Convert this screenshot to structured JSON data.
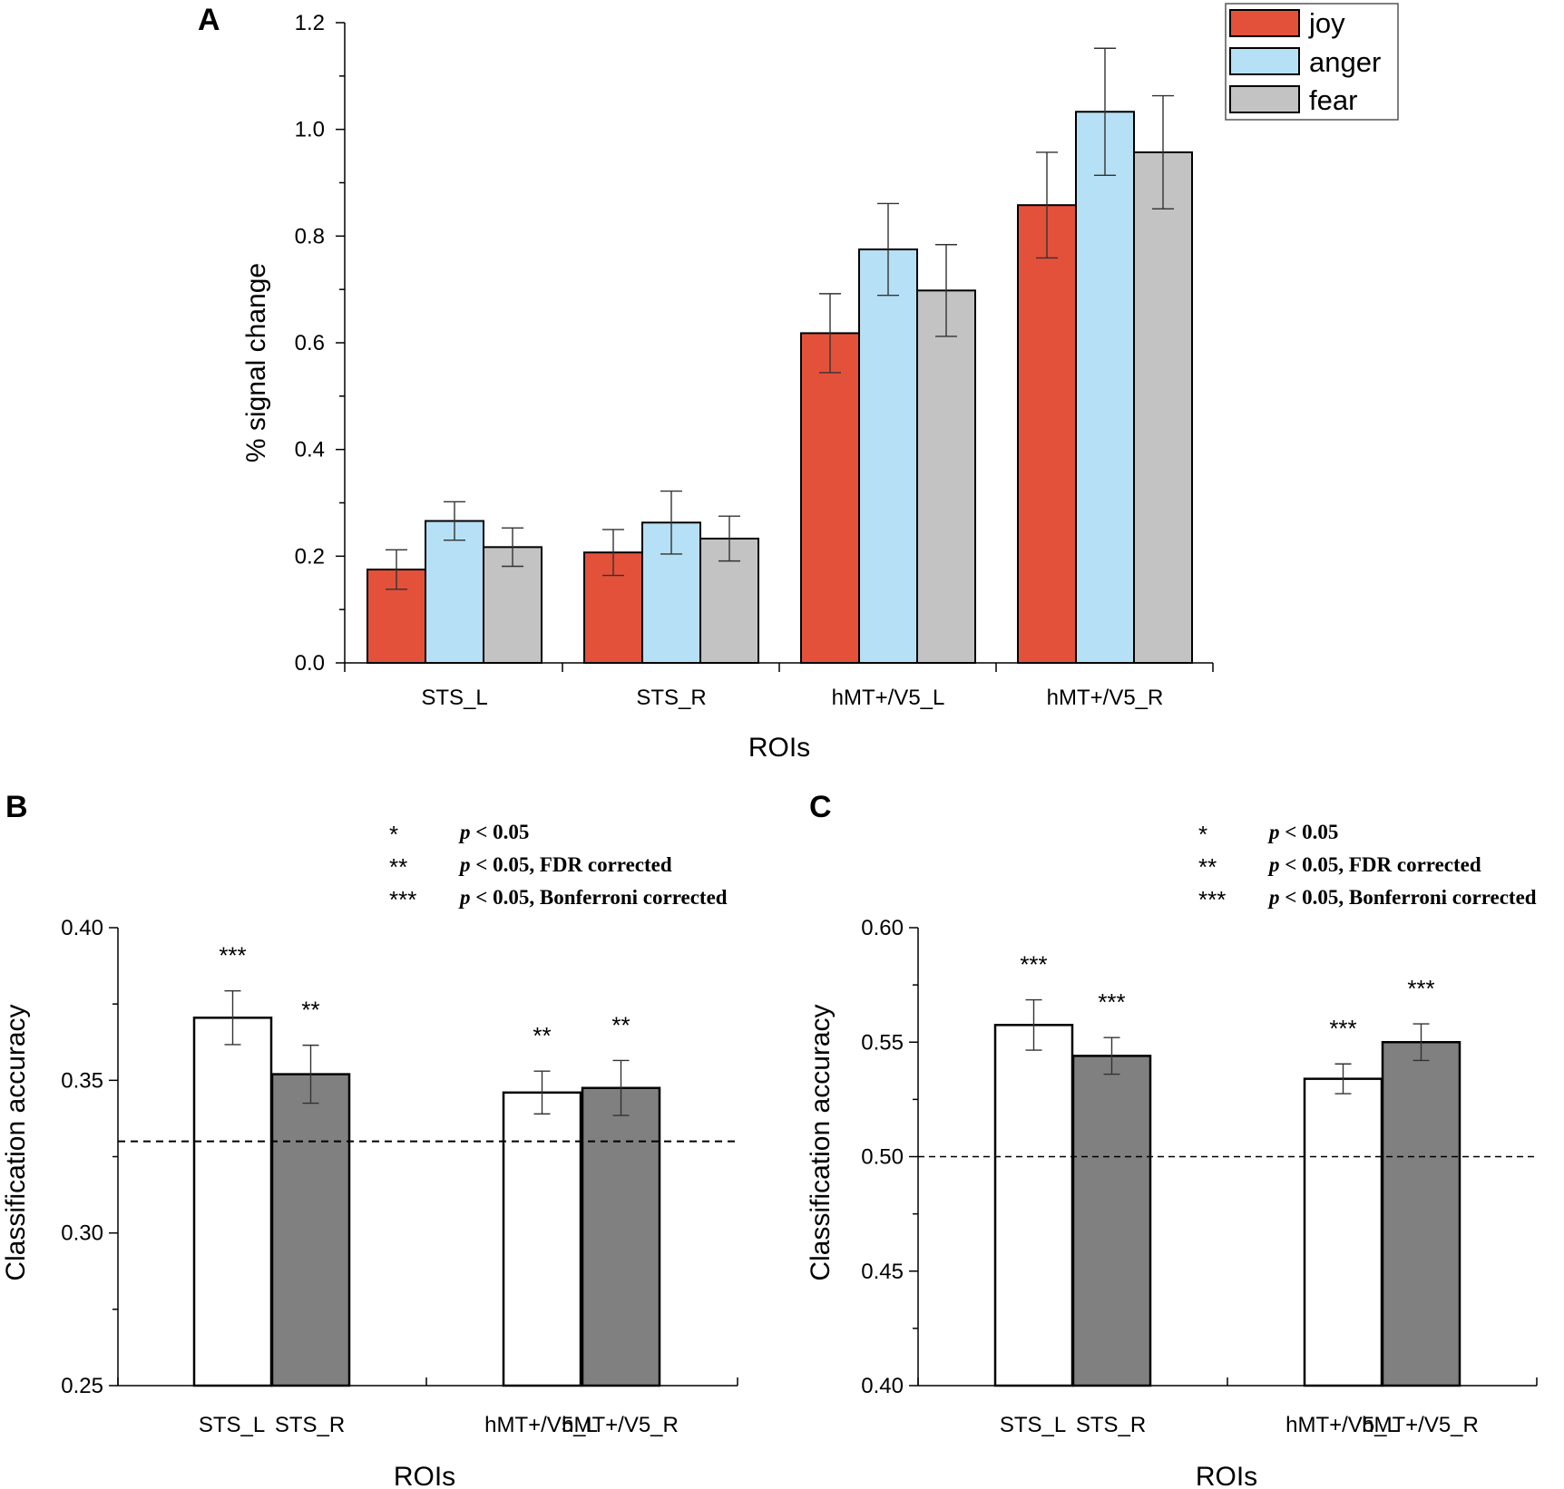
{
  "colors": {
    "joy": "#E4513A",
    "anger": "#B6E0F5",
    "fear": "#C3C3C3",
    "white_bar": "#FFFFFF",
    "gray_bar": "#808080"
  },
  "chart_data": [
    {
      "panel": "A",
      "type": "bar",
      "xlabel": "ROIs",
      "ylabel": "% signal change",
      "ylim": [
        0,
        1.2
      ],
      "yticks": [
        "0.0",
        "0.2",
        "0.4",
        "0.6",
        "0.8",
        "1.0",
        "1.2"
      ],
      "grid": false,
      "legend_position": "top-right",
      "categories": [
        "STS_L",
        "STS_R",
        "hMT+/V5_L",
        "hMT+/V5_R"
      ],
      "series": [
        {
          "name": "joy",
          "values": [
            0.175,
            0.207,
            0.618,
            0.858
          ],
          "errors": [
            0.037,
            0.043,
            0.074,
            0.099
          ]
        },
        {
          "name": "anger",
          "values": [
            0.266,
            0.263,
            0.775,
            1.033
          ],
          "errors": [
            0.036,
            0.059,
            0.086,
            0.119
          ]
        },
        {
          "name": "fear",
          "values": [
            0.217,
            0.233,
            0.698,
            0.957
          ],
          "errors": [
            0.036,
            0.042,
            0.086,
            0.106
          ]
        }
      ]
    },
    {
      "panel": "B",
      "type": "bar",
      "xlabel": "ROIs",
      "ylabel": "Classification accuracy",
      "ylim": [
        0.25,
        0.4
      ],
      "yticks": [
        "0.25",
        "0.30",
        "0.35",
        "0.40"
      ],
      "chance_level": 0.33,
      "categories": [
        "STS_L",
        "STS_R",
        "hMT+/V5_L",
        "hMT+/V5_R"
      ],
      "values": [
        0.3705,
        0.352,
        0.346,
        0.3475
      ],
      "errors": [
        0.0088,
        0.0095,
        0.007,
        0.009
      ],
      "significance": [
        "***",
        "**",
        "**",
        "**"
      ],
      "sig_legend": [
        {
          "stars": "*",
          "p": "p",
          "text": " < 0.05"
        },
        {
          "stars": "**",
          "p": "p",
          "text": " < 0.05, FDR corrected"
        },
        {
          "stars": "***",
          "p": "p",
          "text": " < 0.05, Bonferroni corrected"
        }
      ]
    },
    {
      "panel": "C",
      "type": "bar",
      "xlabel": "ROIs",
      "ylabel": "Classification accuracy",
      "ylim": [
        0.4,
        0.6
      ],
      "yticks": [
        "0.40",
        "0.45",
        "0.50",
        "0.55",
        "0.60"
      ],
      "chance_level": 0.5,
      "categories": [
        "STS_L",
        "STS_R",
        "hMT+/V5_L",
        "hMT+/V5_R"
      ],
      "values": [
        0.5575,
        0.544,
        0.534,
        0.55
      ],
      "errors": [
        0.011,
        0.008,
        0.0065,
        0.008
      ],
      "significance": [
        "***",
        "***",
        "***",
        "***"
      ],
      "sig_legend": [
        {
          "stars": "*",
          "p": "p",
          "text": " < 0.05"
        },
        {
          "stars": "**",
          "p": "p",
          "text": " < 0.05, FDR corrected"
        },
        {
          "stars": "***",
          "p": "p",
          "text": " < 0.05, Bonferroni corrected"
        }
      ]
    }
  ]
}
